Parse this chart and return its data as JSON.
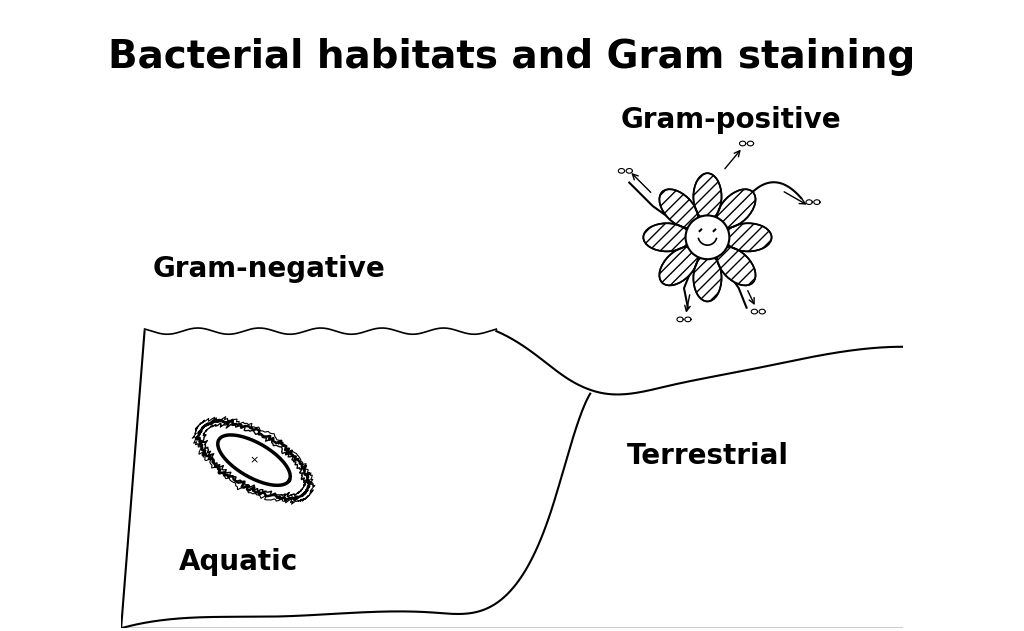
{
  "title": "Bacterial habitats and Gram staining",
  "title_fontsize": 28,
  "title_fontweight": "bold",
  "bg_color": "#ffffff",
  "text_color": "#000000",
  "label_gram_negative": "Gram-negative",
  "label_gram_positive": "Gram-positive",
  "label_aquatic": "Aquatic",
  "label_terrestrial": "Terrestrial",
  "label_fontsize": 20,
  "label_fontweight": "bold",
  "figsize": [
    10.24,
    6.31
  ],
  "dpi": 100
}
